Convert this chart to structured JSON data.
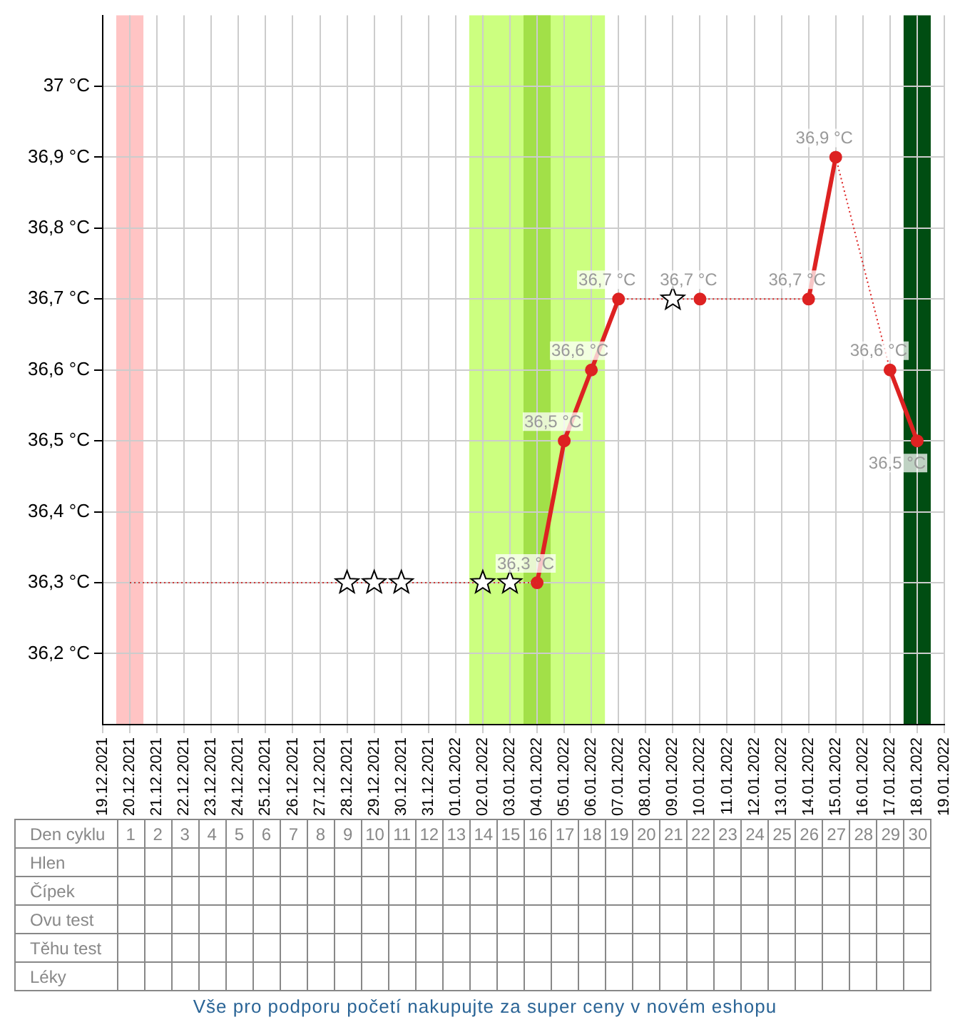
{
  "chart_data": {
    "type": "line",
    "xlim": [
      "2021-12-19",
      "2022-01-19"
    ],
    "xticks": [
      {
        "value": "2021-12-19",
        "label": "19.12.2021"
      },
      {
        "value": "2021-12-20",
        "label": "20.12.2021"
      },
      {
        "value": "2021-12-21",
        "label": "21.12.2021"
      },
      {
        "value": "2021-12-22",
        "label": "22.12.2021"
      },
      {
        "value": "2021-12-23",
        "label": "23.12.2021"
      },
      {
        "value": "2021-12-24",
        "label": "24.12.2021"
      },
      {
        "value": "2021-12-25",
        "label": "25.12.2021"
      },
      {
        "value": "2021-12-26",
        "label": "26.12.2021"
      },
      {
        "value": "2021-12-27",
        "label": "27.12.2021"
      },
      {
        "value": "2021-12-28",
        "label": "28.12.2021"
      },
      {
        "value": "2021-12-29",
        "label": "29.12.2021"
      },
      {
        "value": "2021-12-30",
        "label": "30.12.2021"
      },
      {
        "value": "2021-12-31",
        "label": "31.12.2021"
      },
      {
        "value": "2022-01-01",
        "label": "01.01.2022"
      },
      {
        "value": "2022-01-02",
        "label": "02.01.2022"
      },
      {
        "value": "2022-01-03",
        "label": "03.01.2022"
      },
      {
        "value": "2022-01-04",
        "label": "04.01.2022"
      },
      {
        "value": "2022-01-05",
        "label": "05.01.2022"
      },
      {
        "value": "2022-01-06",
        "label": "06.01.2022"
      },
      {
        "value": "2022-01-07",
        "label": "07.01.2022"
      },
      {
        "value": "2022-01-08",
        "label": "08.01.2022"
      },
      {
        "value": "2022-01-09",
        "label": "09.01.2022"
      },
      {
        "value": "2022-01-10",
        "label": "10.01.2022"
      },
      {
        "value": "2022-01-11",
        "label": "11.01.2022"
      },
      {
        "value": "2022-01-12",
        "label": "12.01.2022"
      },
      {
        "value": "2022-01-13",
        "label": "13.01.2022"
      },
      {
        "value": "2022-01-14",
        "label": "14.01.2022"
      },
      {
        "value": "2022-01-15",
        "label": "15.01.2022"
      },
      {
        "value": "2022-01-16",
        "label": "16.01.2022"
      },
      {
        "value": "2022-01-17",
        "label": "17.01.2022"
      },
      {
        "value": "2022-01-18",
        "label": "18.01.2022"
      },
      {
        "value": "2022-01-19",
        "label": "19.01.2022"
      }
    ],
    "ylim": [
      36.1,
      37.1
    ],
    "yticks": [
      {
        "value": 36.2,
        "label": "36,2 °C"
      },
      {
        "value": 36.3,
        "label": "36,3 °C"
      },
      {
        "value": 36.4,
        "label": "36,4 °C"
      },
      {
        "value": 36.5,
        "label": "36,5 °C"
      },
      {
        "value": 36.6,
        "label": "36,6 °C"
      },
      {
        "value": 36.7,
        "label": "36,7 °C"
      },
      {
        "value": 36.8,
        "label": "36,8 °C"
      },
      {
        "value": 36.9,
        "label": "36,9 °C"
      },
      {
        "value": 37,
        "label": "37 °C"
      }
    ],
    "grid": true,
    "legend": false,
    "series": [
      {
        "type": "line",
        "color": "#cc3333",
        "line_style": "dotted",
        "marker": "none",
        "x": [
          "2021-12-20",
          "2022-01-04"
        ],
        "values": [
          36.3,
          36.3
        ]
      },
      {
        "type": "line",
        "color": "#dd2222",
        "line_style": "solid",
        "marker": "circle",
        "x": [
          "2022-01-04",
          "2022-01-05",
          "2022-01-06",
          "2022-01-07",
          "2022-01-10",
          "2022-01-14",
          "2022-01-15",
          "2022-01-17",
          "2022-01-18"
        ],
        "values": [
          36.3,
          36.5,
          36.6,
          36.7,
          36.7,
          36.7,
          36.9,
          36.6,
          36.5
        ],
        "value_labels": [
          "36,3 °C",
          "36,5 °C",
          "36,6 °C",
          "36,7 °C",
          "36,7 °C",
          "36,7 °C",
          "36,9 °C",
          "36,6 °C",
          "36,5 °C"
        ]
      },
      {
        "type": "scatter",
        "color": "#000000",
        "marker": "star",
        "x": [
          "2021-12-28",
          "2021-12-29",
          "2021-12-30",
          "2022-01-02",
          "2022-01-03",
          "2022-01-09"
        ],
        "values": [
          36.3,
          36.3,
          36.3,
          36.3,
          36.3,
          36.7
        ]
      }
    ],
    "bands": [
      {
        "axis": "x",
        "from": "2021-12-19T12:00",
        "to": "2021-12-20T12:00",
        "color": "#ffc4c4"
      },
      {
        "axis": "x",
        "from": "2022-01-01T12:00",
        "to": "2022-01-06T12:00",
        "color": "#ccff80"
      },
      {
        "axis": "x",
        "from": "2022-01-03T12:00",
        "to": "2022-01-04T12:00",
        "color": "#a2e048"
      },
      {
        "axis": "x",
        "from": "2022-01-17T12:00",
        "to": "2022-01-18T12:00",
        "color": "#004d12"
      }
    ],
    "x2label": "Den cyklu",
    "x2lim": [
      "2021-12-19",
      "2022-01-19"
    ],
    "x2ticks": [
      {
        "value": "2021-12-20",
        "label": "1"
      },
      {
        "value": "2021-12-21",
        "label": "2"
      },
      {
        "value": "2021-12-22",
        "label": "3"
      },
      {
        "value": "2021-12-23",
        "label": "4"
      },
      {
        "value": "2021-12-24",
        "label": "5"
      },
      {
        "value": "2021-12-25",
        "label": "6"
      },
      {
        "value": "2021-12-26",
        "label": "7"
      },
      {
        "value": "2021-12-27",
        "label": "8"
      },
      {
        "value": "2021-12-28",
        "label": "9"
      },
      {
        "value": "2021-12-29",
        "label": "10"
      },
      {
        "value": "2021-12-30",
        "label": "11"
      },
      {
        "value": "2021-12-31",
        "label": "12"
      },
      {
        "value": "2022-01-01",
        "label": "13"
      },
      {
        "value": "2022-01-02",
        "label": "14"
      },
      {
        "value": "2022-01-03",
        "label": "15"
      },
      {
        "value": "2022-01-04",
        "label": "16"
      },
      {
        "value": "2022-01-05",
        "label": "17"
      },
      {
        "value": "2022-01-06",
        "label": "18"
      },
      {
        "value": "2022-01-07",
        "label": "19"
      },
      {
        "value": "2022-01-08",
        "label": "20"
      },
      {
        "value": "2022-01-09",
        "label": "21"
      },
      {
        "value": "2022-01-10",
        "label": "22"
      },
      {
        "value": "2022-01-11",
        "label": "23"
      },
      {
        "value": "2022-01-12",
        "label": "24"
      },
      {
        "value": "2022-01-13",
        "label": "25"
      },
      {
        "value": "2022-01-14",
        "label": "26"
      },
      {
        "value": "2022-01-15",
        "label": "27"
      },
      {
        "value": "2022-01-16",
        "label": "28"
      },
      {
        "value": "2022-01-17",
        "label": "29"
      },
      {
        "value": "2022-01-18",
        "label": "30"
      }
    ],
    "annotations": [
      "Hlen",
      "Čípek",
      "Ovu test",
      "Těhu test",
      "Léky",
      "Vše pro podporu početí nakupujte za super ceny v novém eshopu"
    ]
  }
}
